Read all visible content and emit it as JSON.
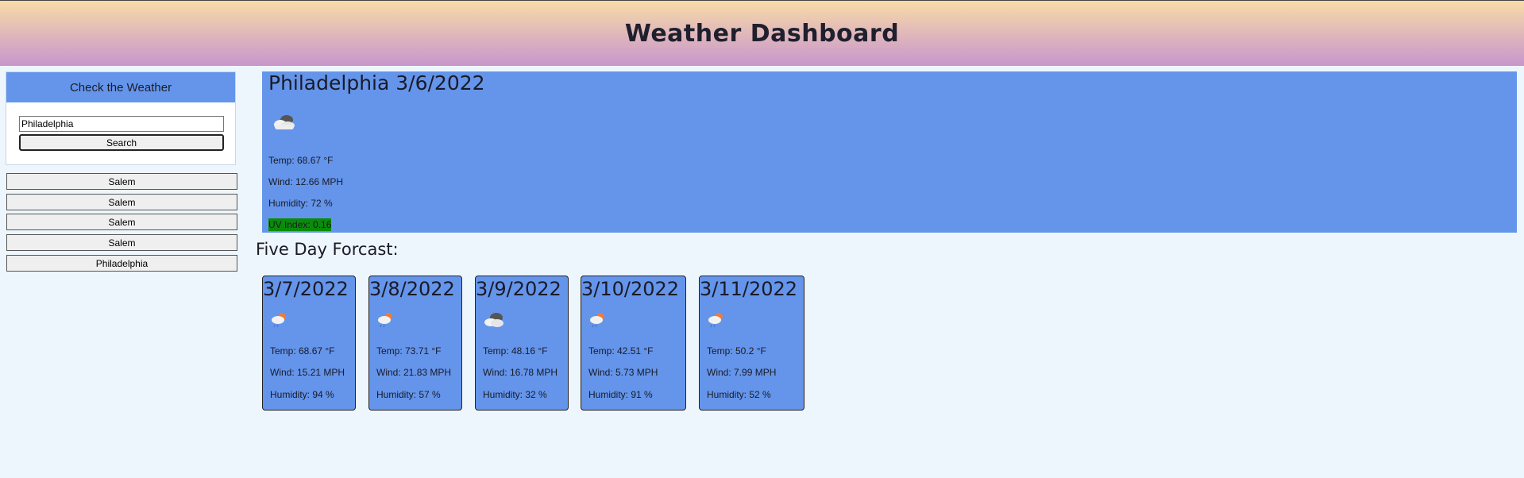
{
  "header": {
    "title": "Weather Dashboard"
  },
  "search": {
    "panel_title": "Check the Weather",
    "input_value": "Philadelphia",
    "button_label": "Search"
  },
  "history": [
    "Salem",
    "Salem",
    "Salem",
    "Salem",
    "Philadelphia"
  ],
  "current": {
    "title": "Philadelphia 3/6/2022",
    "icon": "cloudy-icon",
    "temp": "Temp: 68.67 °F",
    "wind": "Wind: 12.66 MPH",
    "humidity": "Humidity: 72 %",
    "uv": "UV Index: 0.16",
    "uv_color": "#0a8c0a"
  },
  "forecast_title": "Five Day Forcast:",
  "forecast": [
    {
      "date": "3/7/2022",
      "icon": "sun-rain-icon",
      "temp": "Temp: 68.67 °F",
      "wind": "Wind: 15.21 MPH",
      "humidity": "Humidity: 94 %"
    },
    {
      "date": "3/8/2022",
      "icon": "sun-rain-icon",
      "temp": "Temp: 73.71 °F",
      "wind": "Wind: 21.83 MPH",
      "humidity": "Humidity: 57 %"
    },
    {
      "date": "3/9/2022",
      "icon": "cloudy-icon",
      "temp": "Temp: 48.16 °F",
      "wind": "Wind: 16.78 MPH",
      "humidity": "Humidity: 32 %"
    },
    {
      "date": "3/10/2022",
      "icon": "sun-rain-icon",
      "temp": "Temp: 42.51 °F",
      "wind": "Wind: 5.73 MPH",
      "humidity": "Humidity: 91 %"
    },
    {
      "date": "3/11/2022",
      "icon": "sun-rain-icon",
      "temp": "Temp: 50.2 °F",
      "wind": "Wind: 7.99 MPH",
      "humidity": "Humidity: 52 %"
    }
  ],
  "colors": {
    "accent": "#6495ea",
    "background": "#eef6fd"
  }
}
